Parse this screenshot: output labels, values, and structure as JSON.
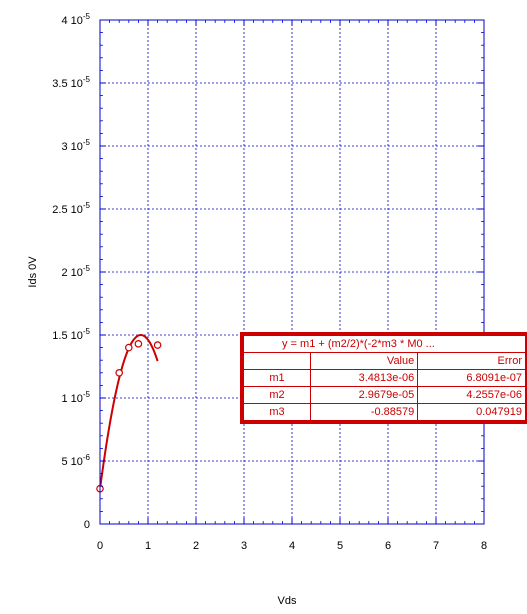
{
  "chart_data": {
    "type": "scatter",
    "title": "",
    "xlabel": "Vds",
    "ylabel": "Ids 0V",
    "xlim": [
      0,
      8
    ],
    "ylim": [
      0,
      4e-05
    ],
    "grid": true,
    "x_ticks": [
      "0",
      "1",
      "2",
      "3",
      "4",
      "5",
      "6",
      "7",
      "8"
    ],
    "y_ticks": [
      {
        "value": 0,
        "mant": "0",
        "exp": ""
      },
      {
        "value": 5e-06,
        "mant": "5 10",
        "exp": "-6"
      },
      {
        "value": 1e-05,
        "mant": "1 10",
        "exp": "-5"
      },
      {
        "value": 1.5e-05,
        "mant": "1.5 10",
        "exp": "-5"
      },
      {
        "value": 2e-05,
        "mant": "2 10",
        "exp": "-5"
      },
      {
        "value": 2.5e-05,
        "mant": "2.5 10",
        "exp": "-5"
      },
      {
        "value": 3e-05,
        "mant": "3 10",
        "exp": "-5"
      },
      {
        "value": 3.5e-05,
        "mant": "3.5 10",
        "exp": "-5"
      },
      {
        "value": 4e-05,
        "mant": "4 10",
        "exp": "-5"
      }
    ],
    "series": [
      {
        "x": [
          0.0,
          0.4,
          0.6,
          0.8,
          1.2
        ],
        "y": [
          2.8e-06,
          1.2e-05,
          1.4e-05,
          1.43e-05,
          1.42e-05
        ],
        "color": "#cc0000"
      }
    ],
    "fit": {
      "equation": "y = m1 + (m2/2)*(-2*m3 * M0 ...",
      "headers": [
        "",
        "Value",
        "Error"
      ],
      "params": [
        {
          "name": "m1",
          "value": "3.4813e-06",
          "error": "6.8091e-07"
        },
        {
          "name": "m2",
          "value": "2.9679e-05",
          "error": "4.2557e-06"
        },
        {
          "name": "m3",
          "value": "-0.88579",
          "error": "0.047919"
        }
      ],
      "m1": 3.4813e-06,
      "m2": 2.9679e-05,
      "m3": -0.88579
    }
  }
}
